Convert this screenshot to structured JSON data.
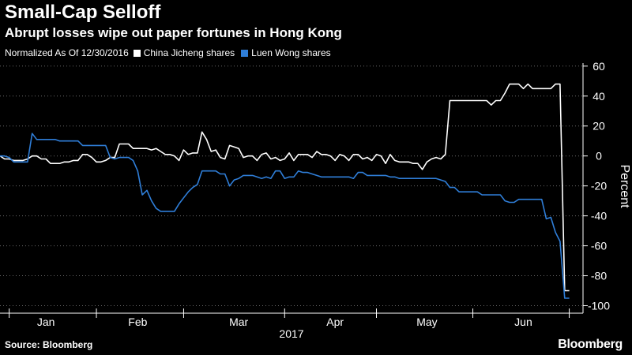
{
  "title": "Small-Cap Selloff",
  "subtitle": "Abrupt losses wipe out paper fortunes in Hong Kong",
  "legend": {
    "note": "Normalized As Of 12/30/2016",
    "items": [
      {
        "label": "China Jicheng shares",
        "color": "#ffffff"
      },
      {
        "label": "Luen Wong shares",
        "color": "#2f7ed8"
      }
    ]
  },
  "source": "Source: Bloomberg",
  "brand": "Bloomberg",
  "chart_data": {
    "type": "line",
    "title": "Small-Cap Selloff",
    "ylabel": "Percent",
    "xlabel": "2017",
    "ylim": [
      -105,
      62
    ],
    "yticks": [
      60,
      40,
      20,
      0,
      -20,
      -40,
      -60,
      -80,
      -100
    ],
    "y_axis_position": "right",
    "grid": "horizontal dotted",
    "legend_position": "top-left",
    "x_unit": "trading day index from 2016-12-30",
    "x_range": [
      0,
      127
    ],
    "months": [
      {
        "label": "Jan",
        "x": 10
      },
      {
        "label": "Feb",
        "x": 30
      },
      {
        "label": "Mar",
        "x": 52
      },
      {
        "label": "Apr",
        "x": 73
      },
      {
        "label": "May",
        "x": 93
      },
      {
        "label": "Jun",
        "x": 114
      }
    ],
    "month_ticks": [
      2,
      21,
      40,
      62,
      82,
      103,
      124
    ],
    "year_label": "2017",
    "series": [
      {
        "name": "China Jicheng shares",
        "color": "#ffffff",
        "points": [
          [
            0,
            0
          ],
          [
            1,
            -2
          ],
          [
            2,
            -2
          ],
          [
            3,
            -3
          ],
          [
            4,
            -3
          ],
          [
            5,
            -3
          ],
          [
            6,
            -2
          ],
          [
            7,
            0
          ],
          [
            8,
            0
          ],
          [
            9,
            -2
          ],
          [
            10,
            -2
          ],
          [
            11,
            -5
          ],
          [
            12,
            -5
          ],
          [
            13,
            -5
          ],
          [
            14,
            -4
          ],
          [
            15,
            -4
          ],
          [
            16,
            -3
          ],
          [
            17,
            -3
          ],
          [
            18,
            1
          ],
          [
            19,
            1
          ],
          [
            20,
            -1
          ],
          [
            21,
            -4
          ],
          [
            22,
            -4
          ],
          [
            23,
            -3
          ],
          [
            24,
            -1
          ],
          [
            25,
            -1
          ],
          [
            26,
            8
          ],
          [
            27,
            8
          ],
          [
            28,
            8
          ],
          [
            29,
            5
          ],
          [
            30,
            5
          ],
          [
            31,
            5
          ],
          [
            32,
            5
          ],
          [
            33,
            4
          ],
          [
            34,
            5
          ],
          [
            35,
            3
          ],
          [
            36,
            1
          ],
          [
            37,
            1
          ],
          [
            38,
            0
          ],
          [
            39,
            -3
          ],
          [
            40,
            4
          ],
          [
            41,
            1
          ],
          [
            42,
            2
          ],
          [
            43,
            2
          ],
          [
            44,
            16
          ],
          [
            45,
            11
          ],
          [
            46,
            3
          ],
          [
            47,
            4
          ],
          [
            48,
            -1
          ],
          [
            49,
            -2
          ],
          [
            50,
            7
          ],
          [
            51,
            6
          ],
          [
            52,
            5
          ],
          [
            53,
            -1
          ],
          [
            54,
            0
          ],
          [
            55,
            0
          ],
          [
            56,
            -3
          ],
          [
            57,
            1
          ],
          [
            58,
            2
          ],
          [
            59,
            -2
          ],
          [
            60,
            -1
          ],
          [
            61,
            -3
          ],
          [
            62,
            -2
          ],
          [
            63,
            2
          ],
          [
            64,
            -3
          ],
          [
            65,
            1
          ],
          [
            66,
            1
          ],
          [
            67,
            1
          ],
          [
            68,
            -1
          ],
          [
            69,
            3
          ],
          [
            70,
            1
          ],
          [
            71,
            1
          ],
          [
            72,
            0
          ],
          [
            73,
            -3
          ],
          [
            74,
            1
          ],
          [
            75,
            0
          ],
          [
            76,
            -3
          ],
          [
            77,
            1
          ],
          [
            78,
            1
          ],
          [
            79,
            -2
          ],
          [
            80,
            -1
          ],
          [
            81,
            -3
          ],
          [
            82,
            1
          ],
          [
            83,
            0
          ],
          [
            84,
            -5
          ],
          [
            85,
            1
          ],
          [
            86,
            -3
          ],
          [
            87,
            -4
          ],
          [
            88,
            -4
          ],
          [
            89,
            -4
          ],
          [
            90,
            -5
          ],
          [
            91,
            -5
          ],
          [
            92,
            -9
          ],
          [
            93,
            -4
          ],
          [
            94,
            -2
          ],
          [
            95,
            -1
          ],
          [
            96,
            -2
          ],
          [
            97,
            1
          ],
          [
            98,
            37
          ],
          [
            99,
            37
          ],
          [
            100,
            37
          ],
          [
            101,
            37
          ],
          [
            102,
            37
          ],
          [
            103,
            37
          ],
          [
            104,
            37
          ],
          [
            105,
            37
          ],
          [
            106,
            37
          ],
          [
            107,
            34
          ],
          [
            108,
            37
          ],
          [
            109,
            37
          ],
          [
            110,
            42
          ],
          [
            111,
            48
          ],
          [
            112,
            48
          ],
          [
            113,
            48
          ],
          [
            114,
            45
          ],
          [
            115,
            48
          ],
          [
            116,
            45
          ],
          [
            117,
            45
          ],
          [
            118,
            45
          ],
          [
            119,
            45
          ],
          [
            120,
            45
          ],
          [
            121,
            48
          ],
          [
            122,
            48
          ],
          [
            123,
            -90
          ],
          [
            124,
            -90
          ]
        ]
      },
      {
        "name": "Luen Wong shares",
        "color": "#2f7ed8",
        "points": [
          [
            0,
            0
          ],
          [
            1,
            0
          ],
          [
            2,
            -1
          ],
          [
            3,
            -4
          ],
          [
            4,
            -4
          ],
          [
            5,
            -4
          ],
          [
            6,
            -4
          ],
          [
            7,
            15
          ],
          [
            8,
            11
          ],
          [
            9,
            11
          ],
          [
            10,
            11
          ],
          [
            11,
            11
          ],
          [
            12,
            11
          ],
          [
            13,
            10
          ],
          [
            14,
            10
          ],
          [
            15,
            10
          ],
          [
            16,
            10
          ],
          [
            17,
            10
          ],
          [
            18,
            7
          ],
          [
            19,
            7
          ],
          [
            20,
            7
          ],
          [
            21,
            7
          ],
          [
            22,
            7
          ],
          [
            23,
            7
          ],
          [
            24,
            -1
          ],
          [
            25,
            -2
          ],
          [
            26,
            -1
          ],
          [
            27,
            -1
          ],
          [
            28,
            -1
          ],
          [
            29,
            -3
          ],
          [
            30,
            -10
          ],
          [
            31,
            -26
          ],
          [
            32,
            -23
          ],
          [
            33,
            -30
          ],
          [
            34,
            -35
          ],
          [
            35,
            -37
          ],
          [
            36,
            -37
          ],
          [
            37,
            -37
          ],
          [
            38,
            -37
          ],
          [
            39,
            -32
          ],
          [
            40,
            -28
          ],
          [
            41,
            -24
          ],
          [
            42,
            -21
          ],
          [
            43,
            -19
          ],
          [
            44,
            -10
          ],
          [
            45,
            -10
          ],
          [
            46,
            -10
          ],
          [
            47,
            -10
          ],
          [
            48,
            -12
          ],
          [
            49,
            -12
          ],
          [
            50,
            -20
          ],
          [
            51,
            -16
          ],
          [
            52,
            -15
          ],
          [
            53,
            -13
          ],
          [
            54,
            -13
          ],
          [
            55,
            -13
          ],
          [
            56,
            -14
          ],
          [
            57,
            -15
          ],
          [
            58,
            -14
          ],
          [
            59,
            -15
          ],
          [
            60,
            -10
          ],
          [
            61,
            -10
          ],
          [
            62,
            -15
          ],
          [
            63,
            -14
          ],
          [
            64,
            -14
          ],
          [
            65,
            -10
          ],
          [
            66,
            -11
          ],
          [
            67,
            -11
          ],
          [
            68,
            -12
          ],
          [
            69,
            -13
          ],
          [
            70,
            -14
          ],
          [
            71,
            -14
          ],
          [
            72,
            -14
          ],
          [
            73,
            -14
          ],
          [
            74,
            -14
          ],
          [
            75,
            -14
          ],
          [
            76,
            -14
          ],
          [
            77,
            -15
          ],
          [
            78,
            -11
          ],
          [
            79,
            -11
          ],
          [
            80,
            -13
          ],
          [
            81,
            -13
          ],
          [
            82,
            -13
          ],
          [
            83,
            -13
          ],
          [
            84,
            -13
          ],
          [
            85,
            -14
          ],
          [
            86,
            -14
          ],
          [
            87,
            -15
          ],
          [
            88,
            -15
          ],
          [
            89,
            -15
          ],
          [
            90,
            -15
          ],
          [
            91,
            -15
          ],
          [
            92,
            -15
          ],
          [
            93,
            -15
          ],
          [
            94,
            -15
          ],
          [
            95,
            -15
          ],
          [
            96,
            -16
          ],
          [
            97,
            -17
          ],
          [
            98,
            -21
          ],
          [
            99,
            -21
          ],
          [
            100,
            -24
          ],
          [
            101,
            -24
          ],
          [
            102,
            -24
          ],
          [
            103,
            -24
          ],
          [
            104,
            -24
          ],
          [
            105,
            -26
          ],
          [
            106,
            -26
          ],
          [
            107,
            -26
          ],
          [
            108,
            -26
          ],
          [
            109,
            -26
          ],
          [
            110,
            -30
          ],
          [
            111,
            -31
          ],
          [
            112,
            -31
          ],
          [
            113,
            -29
          ],
          [
            114,
            -29
          ],
          [
            115,
            -29
          ],
          [
            116,
            -29
          ],
          [
            117,
            -29
          ],
          [
            118,
            -29
          ],
          [
            119,
            -42
          ],
          [
            120,
            -41
          ],
          [
            121,
            -51
          ],
          [
            122,
            -57
          ],
          [
            123,
            -95
          ],
          [
            124,
            -95
          ]
        ]
      }
    ]
  }
}
